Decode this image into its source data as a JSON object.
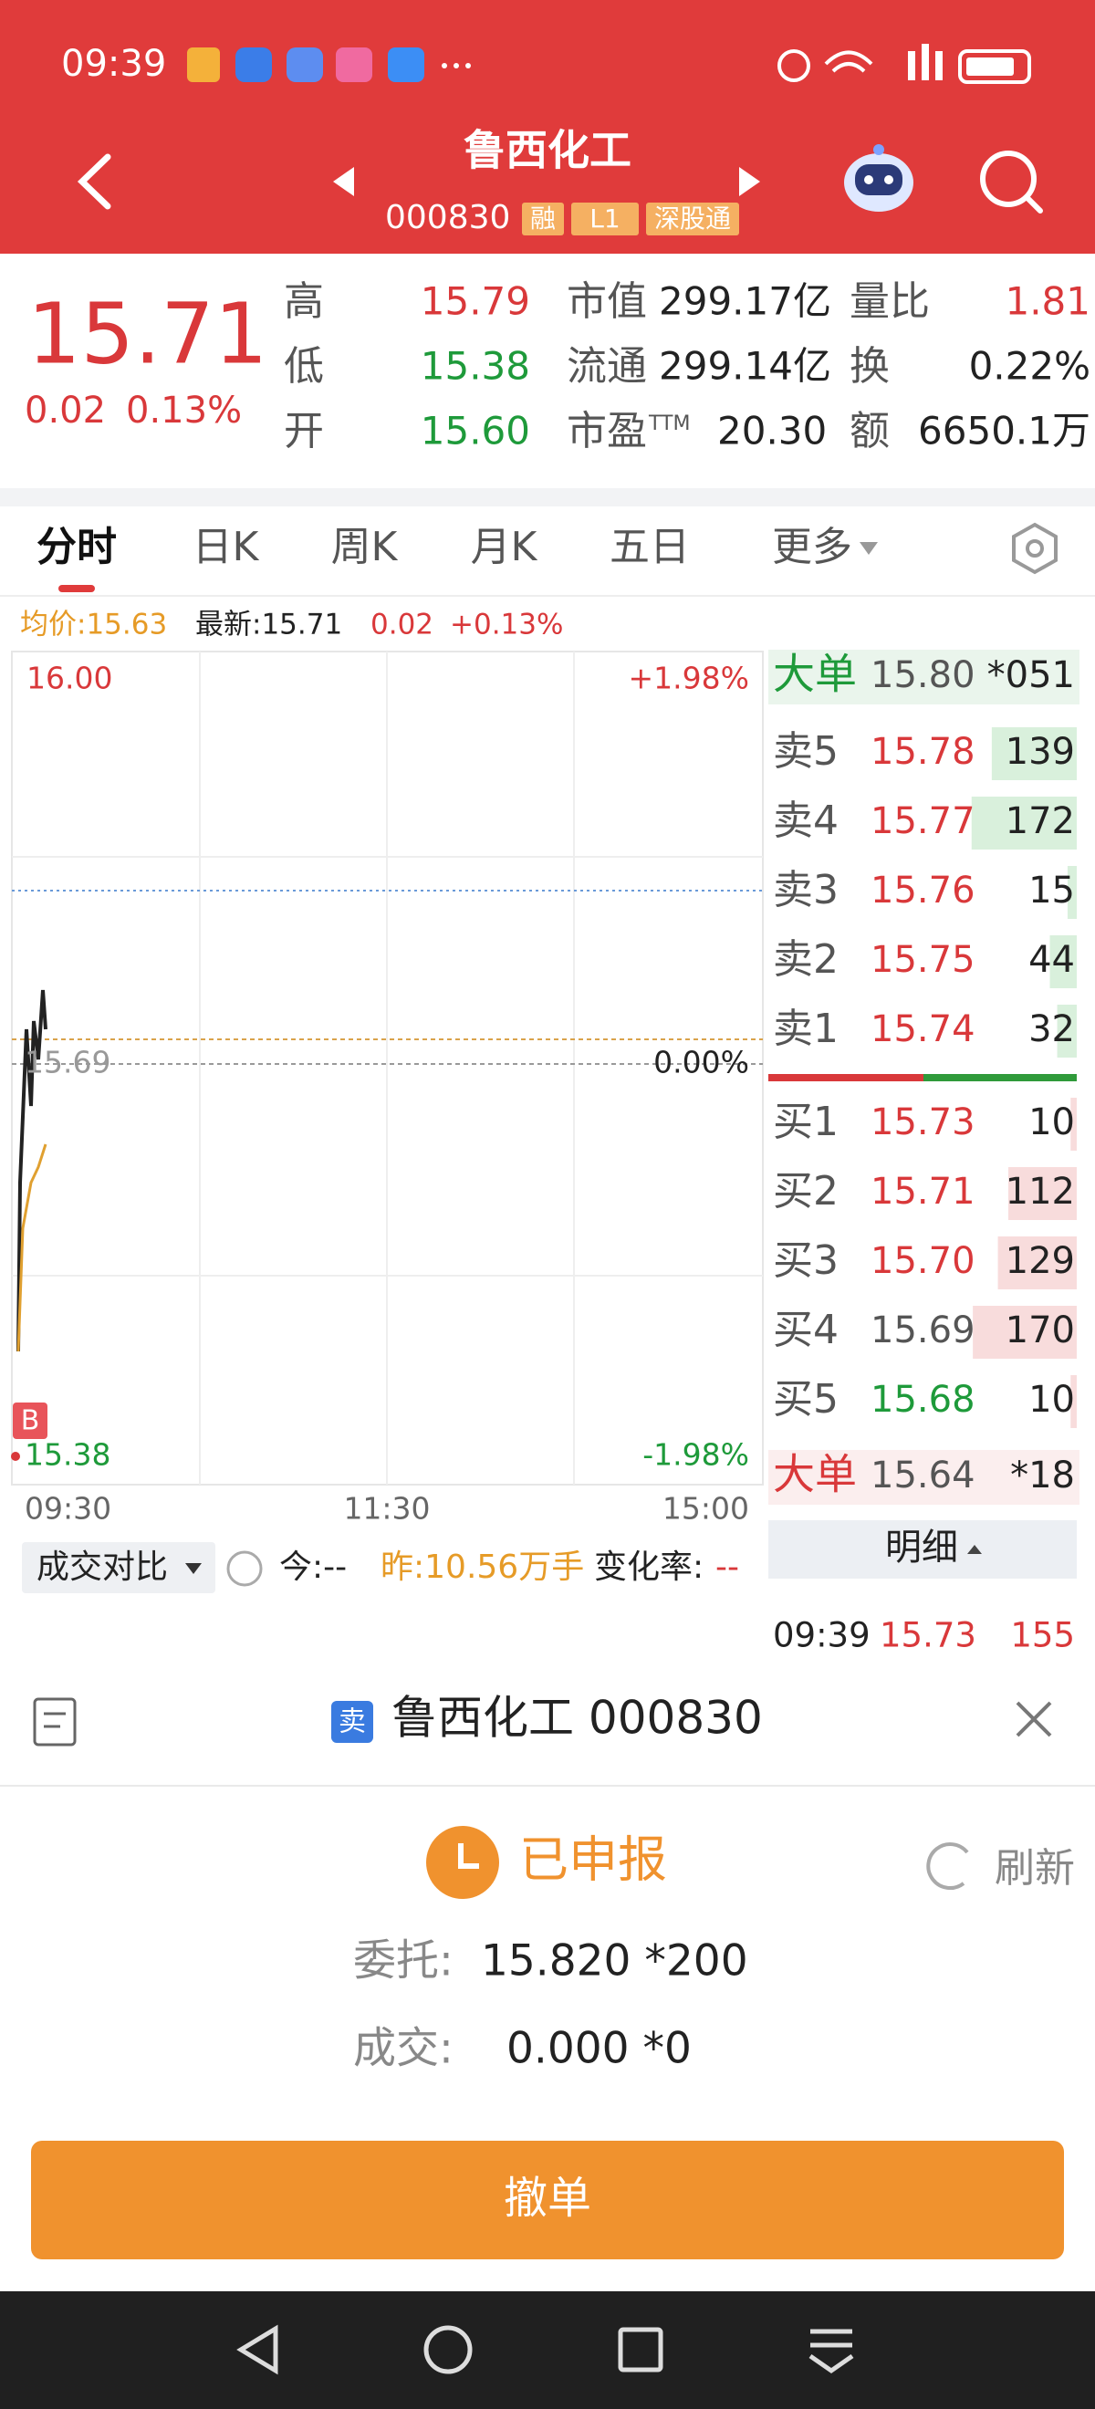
{
  "status_bar": {
    "time": "09:39"
  },
  "header": {
    "title": "鲁西化工",
    "code": "000830",
    "tags": [
      "融",
      "L1",
      "深股通"
    ]
  },
  "quote": {
    "price": "15.71",
    "change": "0.02",
    "change_pct": "0.13%",
    "stats": [
      {
        "label": "高",
        "value": "15.79",
        "color": "#d9383a"
      },
      {
        "label": "低",
        "value": "15.38",
        "color": "#1e9a3a"
      },
      {
        "label": "开",
        "value": "15.60",
        "color": "#1e9a3a"
      },
      {
        "label": "市值",
        "value": "299.17亿",
        "color": "#222222"
      },
      {
        "label": "流通",
        "value": "299.14亿",
        "color": "#222222"
      },
      {
        "label": "市盈",
        "label_sup": "TTM",
        "value": "20.30",
        "color": "#222222"
      },
      {
        "label": "量比",
        "value": "1.81",
        "color": "#d9383a"
      },
      {
        "label": "换",
        "value": "0.22%",
        "color": "#222222"
      },
      {
        "label": "额",
        "value": "6650.1万",
        "color": "#222222"
      }
    ]
  },
  "tabs": [
    "分时",
    "日K",
    "周K",
    "月K",
    "五日",
    "更多"
  ],
  "active_tab": 0,
  "chart_info": {
    "avg": "均价:15.63",
    "latest": "最新:15.71",
    "change": "0.02",
    "change_pct": "+0.13%"
  },
  "chart": {
    "y_top": "16.00",
    "y_top_pct": "+1.98%",
    "y_mid": "15.69",
    "y_mid_pct": "0.00%",
    "y_bottom": "15.38",
    "y_bottom_pct": "-1.98%",
    "times": [
      "09:30",
      "11:30",
      "15:00"
    ],
    "marker": "B"
  },
  "order_book": {
    "big_sell": {
      "label": "大单",
      "price": "15.80",
      "volume": "*051"
    },
    "asks": [
      {
        "label": "卖5",
        "price": "15.78",
        "volume": 139
      },
      {
        "label": "卖4",
        "price": "15.77",
        "volume": 172
      },
      {
        "label": "卖3",
        "price": "15.76",
        "volume": 15
      },
      {
        "label": "卖2",
        "price": "15.75",
        "volume": 44
      },
      {
        "label": "卖1",
        "price": "15.74",
        "volume": 32
      }
    ],
    "bids": [
      {
        "label": "买1",
        "price": "15.73",
        "volume": 10
      },
      {
        "label": "买2",
        "price": "15.71",
        "volume": 112
      },
      {
        "label": "买3",
        "price": "15.70",
        "volume": 129
      },
      {
        "label": "买4",
        "price": "15.69",
        "volume": 170
      },
      {
        "label": "买5",
        "price": "15.68",
        "volume": 10
      }
    ],
    "big_buy": {
      "label": "大单",
      "price": "15.64",
      "volume": "*18"
    },
    "detail_button": "明细",
    "trades": [
      {
        "time": "09:39",
        "price": "15.73",
        "volume": "155"
      }
    ]
  },
  "compare_bar": {
    "label": "成交对比",
    "today": "今:--",
    "yesterday": "昨:10.56万手",
    "rate_label": "变化率:",
    "rate": "--"
  },
  "order_sheet": {
    "side": "卖",
    "title": "鲁西化工 000830",
    "status": "已申报",
    "refresh": "刷新",
    "entrust_label": "委托:",
    "entrust_value": "15.820 *200",
    "deal_label": "成交:",
    "deal_value": "0.000 *0",
    "cancel_button": "撤单"
  }
}
